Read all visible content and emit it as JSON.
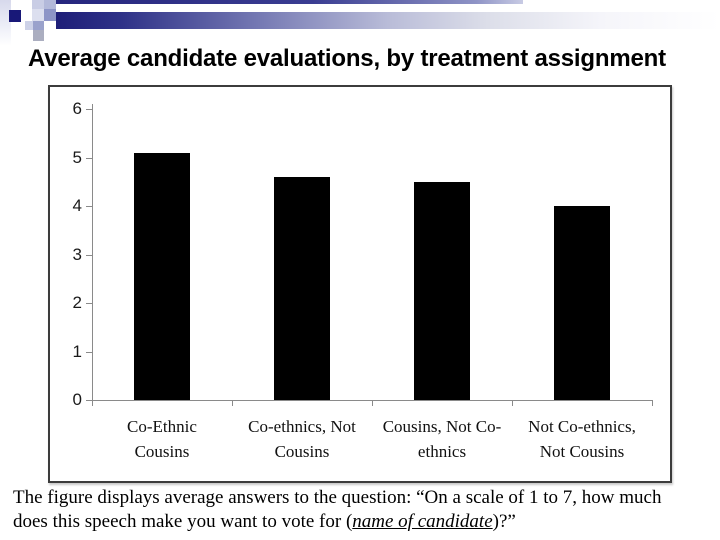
{
  "slide": {
    "title": "Average candidate evaluations, by treatment assignment"
  },
  "caption": {
    "line1": "The figure displays average answers to the question: “On a scale of 1 to 7, how much",
    "line2_prefix": "does this speech make you want to vote for (",
    "line2_italic": "name of candidate",
    "line2_suffix": ")?”"
  },
  "colors": {
    "accent_navy": "#1e1e78",
    "bar_fill": "#000000",
    "axis_gray": "#8a8a8a"
  },
  "chart_data": {
    "type": "bar",
    "title": "",
    "xlabel": "",
    "ylabel": "",
    "categories": [
      "Co-Ethnic\nCousins",
      "Co-ethnics, Not\nCousins",
      "Cousins, Not Co-\nethnics",
      "Not Co-ethnics,\nNot Cousins"
    ],
    "values": [
      5.1,
      4.6,
      4.5,
      4.0
    ],
    "ylim": [
      0,
      6
    ],
    "yticks": [
      0,
      1,
      2,
      3,
      4,
      5,
      6
    ],
    "grid": false,
    "legend": false,
    "bar_color": "#000000"
  }
}
